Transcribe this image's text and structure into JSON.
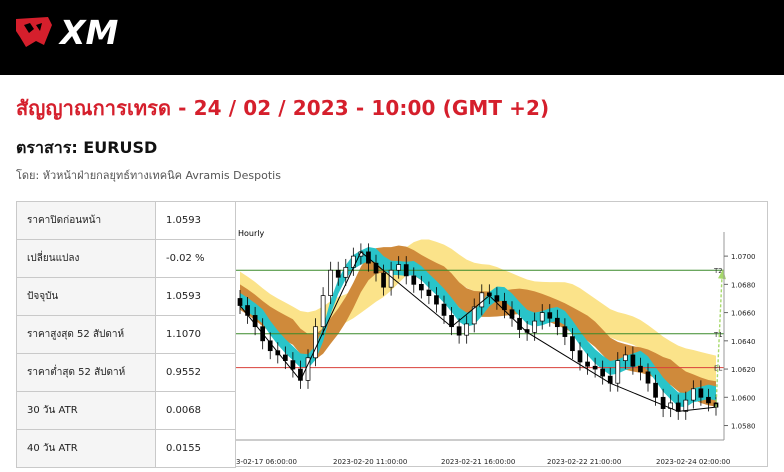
{
  "header": {
    "brand": "XM",
    "logo_icon": "xm-bull-logo-icon"
  },
  "headline": "สัญญาณการเทรด - 24 / 02 / 2023 - 10:00 (GMT +2)",
  "instrument": "ตราสาร: EURUSD",
  "author": "โดย: หัวหน้าฝ่ายกลยุทธ์ทางเทคนิค Avramis Despotis",
  "stats": [
    {
      "label": "ราคาปิดก่อนหน้า",
      "value": "1.0593"
    },
    {
      "label": "เปลี่ยนแปลง",
      "value": "-0.02 %"
    },
    {
      "label": "ปัจจุบัน",
      "value": "1.0593"
    },
    {
      "label": "ราคาสูงสุด 52 สัปดาห์",
      "value": "1.1070"
    },
    {
      "label": "ราคาต่ำสุด 52 สัปดาห์",
      "value": "0.9552"
    },
    {
      "label": "30 วัน ATR",
      "value": "0.0068"
    },
    {
      "label": "40 วัน ATR",
      "value": "0.0155"
    }
  ],
  "chart_data": {
    "type": "line",
    "title": "Hourly",
    "x_ticks": [
      "3-02-17 06:00:00",
      "2023-02-20 11:00:00",
      "2023-02-21 16:00:00",
      "2023-02-22 21:00:00",
      "2023-02-24 02:00:00"
    ],
    "y_ticks": [
      "1.0700",
      "1.0680",
      "1.0660",
      "1.0640",
      "1.0620",
      "1.0600",
      "1.0580"
    ],
    "ylim": [
      1.0574,
      1.071
    ],
    "levels": [
      {
        "label": "T2",
        "value": 1.069,
        "color": "#3a8a2a"
      },
      {
        "label": "T1",
        "value": 1.0645,
        "color": "#3a8a2a"
      },
      {
        "label": "EL",
        "value": 1.0621,
        "color": "#d9403a"
      }
    ],
    "price_close": [
      1.0665,
      1.0658,
      1.065,
      1.064,
      1.0633,
      1.063,
      1.0626,
      1.062,
      1.0612,
      1.0628,
      1.065,
      1.0672,
      1.069,
      1.0685,
      1.0692,
      1.07,
      1.0703,
      1.0695,
      1.0688,
      1.0678,
      1.069,
      1.0694,
      1.0686,
      1.068,
      1.0676,
      1.0672,
      1.0666,
      1.0658,
      1.065,
      1.0644,
      1.0652,
      1.0664,
      1.0674,
      1.0672,
      1.0668,
      1.0662,
      1.0656,
      1.0648,
      1.0646,
      1.0654,
      1.066,
      1.0656,
      1.065,
      1.0643,
      1.0633,
      1.0625,
      1.0622,
      1.062,
      1.0615,
      1.061,
      1.0626,
      1.063,
      1.0622,
      1.0618,
      1.061,
      1.06,
      1.0592,
      1.0596,
      1.059,
      1.0598,
      1.0606,
      1.06,
      1.0596,
      1.0593
    ],
    "bands": {
      "fast_fill": "#29c4c9",
      "mid_fill": "#cf8a3b",
      "slow_fill": "#fbe38a"
    },
    "projection_color": "#a6d96a"
  }
}
